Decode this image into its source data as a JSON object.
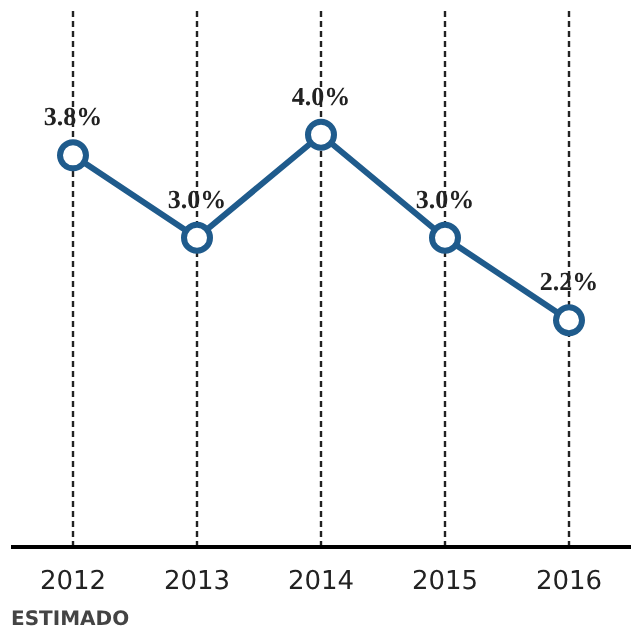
{
  "chart_data": {
    "type": "line",
    "categories": [
      "2012",
      "2013",
      "2014",
      "2015",
      "2016"
    ],
    "series": [
      {
        "color": "#1f5b8c",
        "values": [
          3.8,
          3.0,
          4.0,
          3.0,
          2.2
        ],
        "value_labels": [
          "3.8%",
          "3.0%",
          "4.0%",
          "3.0%",
          "2.2%"
        ]
      }
    ],
    "marker": "circle",
    "line_style": "solid",
    "grid": "x",
    "tick_labels": "x",
    "annotations": [
      "ESTIMADO"
    ]
  }
}
